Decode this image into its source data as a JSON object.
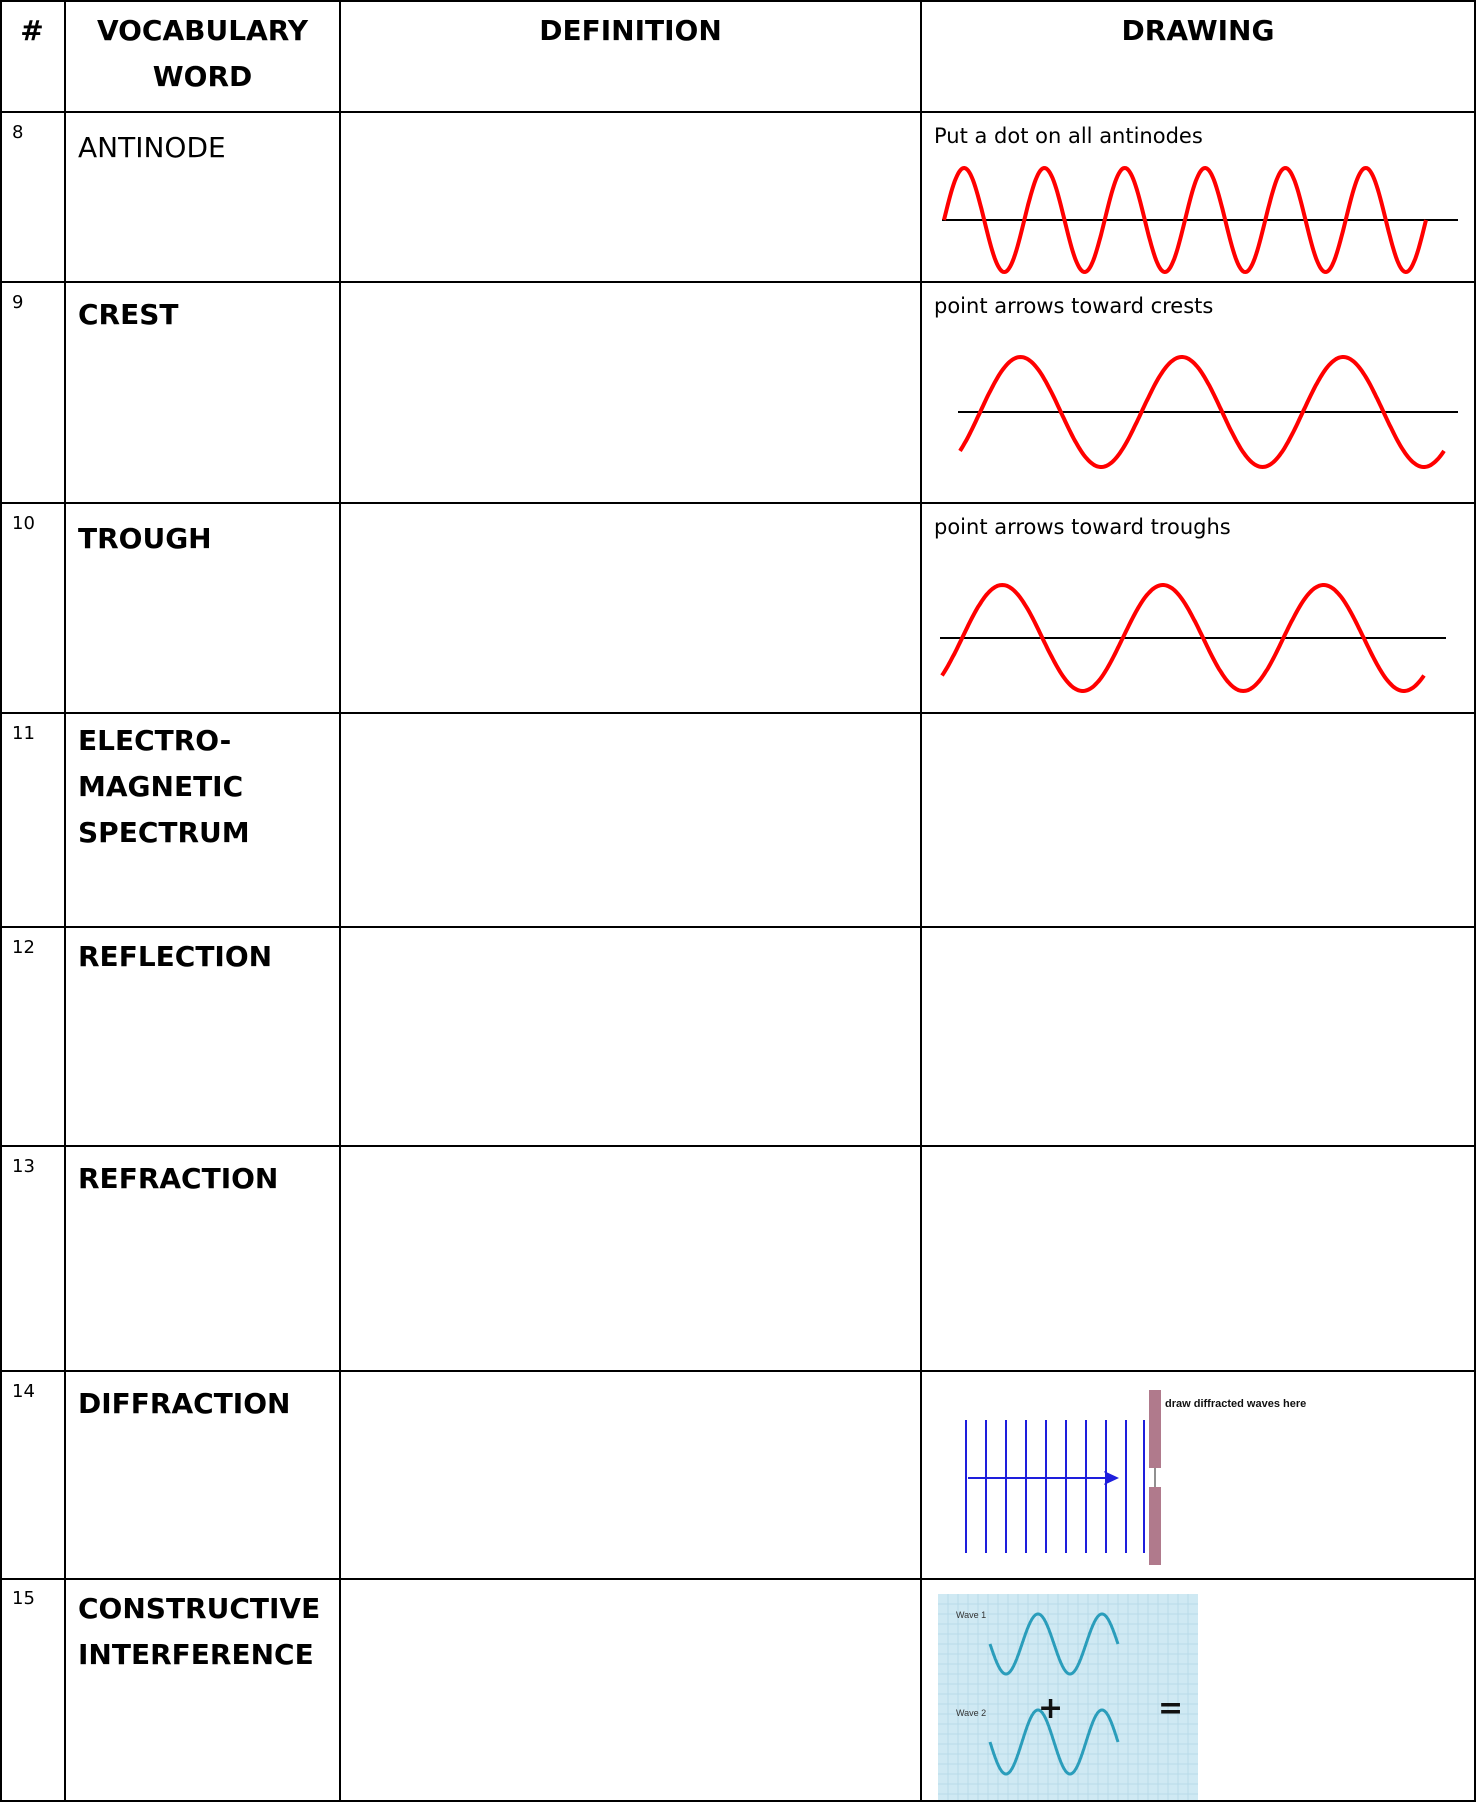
{
  "header": {
    "number": "#",
    "word": "VOCABULARY WORD",
    "definition": "DEFINITION",
    "drawing": "DRAWING"
  },
  "rows": [
    {
      "number": "8",
      "word": "ANTINODE",
      "drawing_instruction": "Put a dot on all antinodes"
    },
    {
      "number": "9",
      "word": "CREST",
      "drawing_instruction": "point arrows toward crests"
    },
    {
      "number": "10",
      "word": "TROUGH",
      "drawing_instruction": "point arrows toward troughs"
    },
    {
      "number": "11",
      "word": "ELECTRO-\nMAGNETIC\nSPECTRUM",
      "drawing_instruction": ""
    },
    {
      "number": "12",
      "word": "REFLECTION",
      "drawing_instruction": ""
    },
    {
      "number": "13",
      "word": "REFRACTION",
      "drawing_instruction": ""
    },
    {
      "number": "14",
      "word": "DIFFRACTION",
      "drawing_label": "draw diffracted waves here"
    },
    {
      "number": "15",
      "word": "CONSTRUCTIVE\nINTERFERENCE",
      "wave1_label": "Wave 1",
      "wave2_label": "Wave 2",
      "plus": "+",
      "equals": "="
    }
  ],
  "colors": {
    "wave_red": "#ff0000",
    "wave_blue": "#1e1edc",
    "barrier": "#b07a8c",
    "interference_bg": "#cfe9f3",
    "interference_wave": "#2a9dbb"
  },
  "icons": [
    "sine-wave-graphic",
    "diffraction-graphic",
    "interference-graphic"
  ]
}
